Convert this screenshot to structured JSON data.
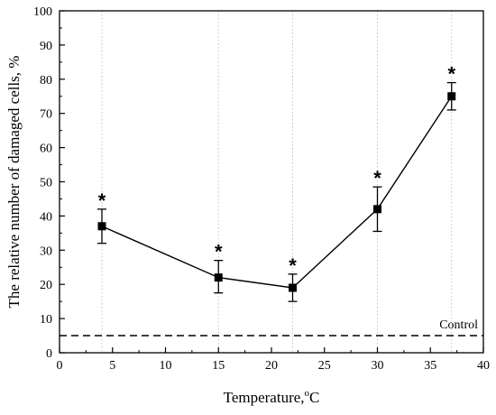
{
  "chart_data": {
    "type": "line",
    "title": "",
    "xlabel": "Temperature,",
    "xlabel_superscript": "o",
    "xlabel_unit": "C",
    "ylabel": "The relative number of damaged cells, %",
    "xlim": [
      0,
      40
    ],
    "ylim": [
      0,
      100
    ],
    "xticks": [
      0,
      5,
      10,
      15,
      20,
      25,
      30,
      35,
      40
    ],
    "yticks": [
      0,
      10,
      20,
      30,
      40,
      50,
      60,
      70,
      80,
      90,
      100
    ],
    "grid": "vertical dotted lines at data x values",
    "series": [
      {
        "marker": "square",
        "color": "#000000",
        "x": [
          4,
          15,
          22,
          30,
          37
        ],
        "y": [
          37,
          22,
          19,
          42,
          75
        ],
        "y_err_low": [
          32,
          17.5,
          15,
          35.5,
          71
        ],
        "y_err_high": [
          42,
          27,
          23,
          48.5,
          79
        ],
        "significance": [
          "*",
          "*",
          "*",
          "*",
          "*"
        ]
      }
    ],
    "reference_line": {
      "label": "Control",
      "y": 5,
      "style": "dashed"
    }
  }
}
